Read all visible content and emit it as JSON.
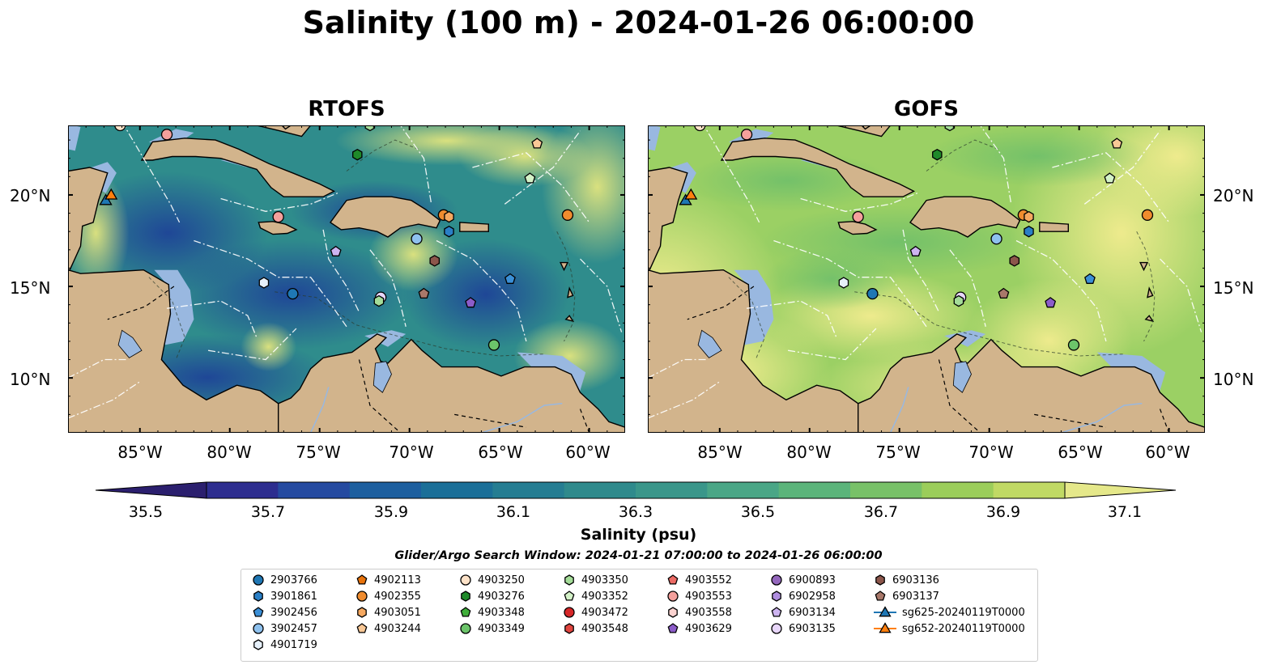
{
  "title": "Salinity (100 m) - 2024-01-26 06:00:00",
  "panels": [
    {
      "title": "RTOFS"
    },
    {
      "title": "GOFS"
    }
  ],
  "lat_labels": [
    "20°N",
    "15°N",
    "10°N"
  ],
  "lon_labels": [
    "85°W",
    "80°W",
    "75°W",
    "70°W",
    "65°W",
    "60°W"
  ],
  "colorbar": {
    "ticks": [
      "35.5",
      "35.7",
      "35.9",
      "36.1",
      "36.3",
      "36.5",
      "36.7",
      "36.9",
      "37.1"
    ],
    "label": "Salinity (psu)",
    "colors": [
      "#2b1f6e",
      "#2d2d8f",
      "#254aa0",
      "#1d5f9f",
      "#1b6f98",
      "#257d92",
      "#2f8a8c",
      "#3a968a",
      "#4aa686",
      "#5bb47a",
      "#78c168",
      "#9bcd5a",
      "#c0d964",
      "#e5e88a"
    ]
  },
  "search_window": "Glider/Argo Search Window: 2024-01-21 07:00:00 to 2024-01-26 06:00:00",
  "legend": {
    "items": [
      {
        "label": "2903766",
        "shape": "circle",
        "color": "#1f77b4"
      },
      {
        "label": "3901861",
        "shape": "hexagon",
        "color": "#2a7fc6"
      },
      {
        "label": "3902456",
        "shape": "pentagon",
        "color": "#3b8fd6"
      },
      {
        "label": "3902457",
        "shape": "circle",
        "color": "#8ec1ee"
      },
      {
        "label": "4901719",
        "shape": "hexagon",
        "color": "#e6f0fa"
      },
      {
        "label": "4902113",
        "shape": "pentagon",
        "color": "#e8730c"
      },
      {
        "label": "4902355",
        "shape": "circle",
        "color": "#f08c2e"
      },
      {
        "label": "4903051",
        "shape": "hexagon",
        "color": "#f5a860"
      },
      {
        "label": "4903244",
        "shape": "pentagon",
        "color": "#f9c896"
      },
      {
        "label": "4903250",
        "shape": "circle",
        "color": "#fde2c8"
      },
      {
        "label": "4903276",
        "shape": "hexagon",
        "color": "#1f8a2a"
      },
      {
        "label": "4903348",
        "shape": "pentagon",
        "color": "#3fae3a"
      },
      {
        "label": "4903349",
        "shape": "circle",
        "color": "#6cc46a"
      },
      {
        "label": "4903350",
        "shape": "hexagon",
        "color": "#a4dc98"
      },
      {
        "label": "4903352",
        "shape": "pentagon",
        "color": "#d4f2c8"
      },
      {
        "label": "4903472",
        "shape": "circle",
        "color": "#d62728"
      },
      {
        "label": "4903548",
        "shape": "hexagon",
        "color": "#e0453f"
      },
      {
        "label": "4903552",
        "shape": "pentagon",
        "color": "#ec6a64"
      },
      {
        "label": "4903553",
        "shape": "circle",
        "color": "#f4a09c"
      },
      {
        "label": "4903558",
        "shape": "hexagon",
        "color": "#fbd3d0"
      },
      {
        "label": "4903629",
        "shape": "pentagon",
        "color": "#8c5cc9"
      },
      {
        "label": "6900893",
        "shape": "circle",
        "color": "#9467bd"
      },
      {
        "label": "6902958",
        "shape": "hexagon",
        "color": "#b08ee0"
      },
      {
        "label": "6903134",
        "shape": "pentagon",
        "color": "#cdb4f0"
      },
      {
        "label": "6903135",
        "shape": "circle",
        "color": "#e8d6fa"
      },
      {
        "label": "6903136",
        "shape": "hexagon",
        "color": "#8c564b"
      },
      {
        "label": "6903137",
        "shape": "pentagon",
        "color": "#a8786a"
      },
      {
        "label": "sg625-20240119T0000",
        "shape": "triangle-line",
        "color": "#1f77b4"
      },
      {
        "label": "sg652-20240119T0000",
        "shape": "triangle-line",
        "color": "#ff7f0e"
      }
    ]
  },
  "markers": [
    {
      "shape": "circle",
      "color": "#fde2c8",
      "lon": -86.1,
      "lat": 23.8
    },
    {
      "shape": "circle",
      "color": "#f4a09c",
      "lon": -83.5,
      "lat": 23.3
    },
    {
      "shape": "hexagon",
      "color": "#a4dc98",
      "lon": -72.2,
      "lat": 23.8
    },
    {
      "shape": "hexagon",
      "color": "#1f8a2a",
      "lon": -72.9,
      "lat": 22.2
    },
    {
      "shape": "pentagon",
      "color": "#f9c896",
      "lon": -62.9,
      "lat": 22.8
    },
    {
      "shape": "pentagon",
      "color": "#d4f2c8",
      "lon": -63.3,
      "lat": 20.9
    },
    {
      "shape": "circle",
      "color": "#f4a09c",
      "lon": -77.3,
      "lat": 18.8
    },
    {
      "shape": "circle",
      "color": "#f08c2e",
      "lon": -68.1,
      "lat": 18.9
    },
    {
      "shape": "hexagon",
      "color": "#f5a860",
      "lon": -67.8,
      "lat": 18.8
    },
    {
      "shape": "circle",
      "color": "#f08c2e",
      "lon": -61.2,
      "lat": 18.9
    },
    {
      "shape": "hexagon",
      "color": "#2a7fc6",
      "lon": -67.8,
      "lat": 18.0
    },
    {
      "shape": "circle",
      "color": "#8ec1ee",
      "lon": -69.6,
      "lat": 17.6
    },
    {
      "shape": "pentagon",
      "color": "#cdb4f0",
      "lon": -74.1,
      "lat": 16.9
    },
    {
      "shape": "hexagon",
      "color": "#8c564b",
      "lon": -68.6,
      "lat": 16.4
    },
    {
      "shape": "pentagon",
      "color": "#3b8fd6",
      "lon": -64.4,
      "lat": 15.4
    },
    {
      "shape": "hexagon",
      "color": "#e6f0fa",
      "lon": -78.1,
      "lat": 15.2
    },
    {
      "shape": "circle",
      "color": "#1f77b4",
      "lon": -76.5,
      "lat": 14.6
    },
    {
      "shape": "circle",
      "color": "#e8d6fa",
      "lon": -71.6,
      "lat": 14.4
    },
    {
      "shape": "hexagon",
      "color": "#a4dc98",
      "lon": -71.7,
      "lat": 14.2
    },
    {
      "shape": "pentagon",
      "color": "#a8786a",
      "lon": -69.2,
      "lat": 14.6
    },
    {
      "shape": "pentagon",
      "color": "#8c5cc9",
      "lon": -66.6,
      "lat": 14.1
    },
    {
      "shape": "circle",
      "color": "#6cc46a",
      "lon": -65.3,
      "lat": 11.8
    },
    {
      "shape": "triangle",
      "color": "#1f77b4",
      "lon": -86.9,
      "lat": 19.7
    },
    {
      "shape": "triangle",
      "color": "#ff7f0e",
      "lon": -86.6,
      "lat": 20.0
    }
  ]
}
